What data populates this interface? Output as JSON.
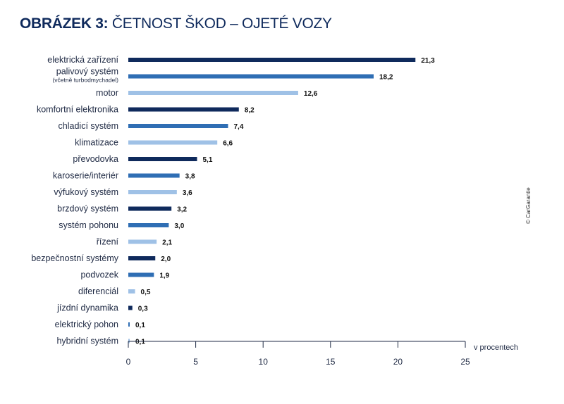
{
  "title_bold": "OBRÁZEK 3:",
  "title_rest": " ČETNOST ŠKOD – OJETÉ VOZY",
  "credit": "© CarGarantie",
  "colors": {
    "dark": "#0f2a5c",
    "mid": "#2f6eb4",
    "light": "#9fc1e6",
    "axis": "#1f2a44"
  },
  "chart_data": {
    "type": "bar",
    "orientation": "horizontal",
    "title": "OBRÁZEK 3: ČETNOST ŠKOD – OJETÉ VOZY",
    "xlabel": "v procentech",
    "xlim": [
      0,
      25
    ],
    "xticks": [
      0,
      5,
      10,
      15,
      20,
      25
    ],
    "categories": [
      "elektrická zařízení",
      "palivový systém",
      "motor",
      "komfortní elektronika",
      "chladicí systém",
      "klimatizace",
      "převodovka",
      "karoserie/interiér",
      "výfukový systém",
      "brzdový systém",
      "systém pohonu",
      "řízení",
      "bezpečnostní systémy",
      "podvozek",
      "diferenciál",
      "jízdní dynamika",
      "elektrický pohon",
      "hybridní systém"
    ],
    "category_notes": {
      "1": "(včetně turbodmychadel)"
    },
    "values": [
      21.3,
      18.2,
      12.6,
      8.2,
      7.4,
      6.6,
      5.1,
      3.8,
      3.6,
      3.2,
      3.0,
      2.1,
      2.0,
      1.9,
      0.5,
      0.3,
      0.1,
      0.1
    ],
    "value_labels": [
      "21,3",
      "18,2",
      "12,6",
      "8,2",
      "7,4",
      "6,6",
      "5,1",
      "3,8",
      "3,6",
      "3,2",
      "3,0",
      "2,1",
      "2,0",
      "1,9",
      "0,5",
      "0,3",
      "0,1",
      "0,1"
    ]
  }
}
